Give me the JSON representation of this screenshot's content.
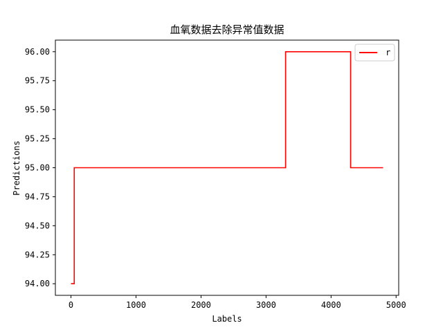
{
  "chart_data": {
    "type": "line",
    "title": "血氧数据去除异常值数据",
    "xlabel": "Labels",
    "ylabel": "Predictions",
    "xlim": [
      -240,
      5040
    ],
    "ylim": [
      93.9,
      96.1
    ],
    "x_ticks": [
      0,
      1000,
      2000,
      3000,
      4000,
      5000
    ],
    "x_tick_labels": [
      "0",
      "1000",
      "2000",
      "3000",
      "4000",
      "5000"
    ],
    "y_ticks": [
      94.0,
      94.25,
      94.5,
      94.75,
      95.0,
      95.25,
      95.5,
      95.75,
      96.0
    ],
    "y_tick_labels": [
      "94.00",
      "94.25",
      "94.50",
      "94.75",
      "95.00",
      "95.25",
      "95.50",
      "95.75",
      "96.00"
    ],
    "grid": false,
    "legend": "top-right",
    "series": [
      {
        "name": "r",
        "color": "#ff0000",
        "x": [
          0,
          50,
          50,
          3300,
          3300,
          4300,
          4300,
          4800
        ],
        "y": [
          94.0,
          94.0,
          95.0,
          95.0,
          96.0,
          96.0,
          95.0,
          95.0
        ]
      }
    ]
  }
}
